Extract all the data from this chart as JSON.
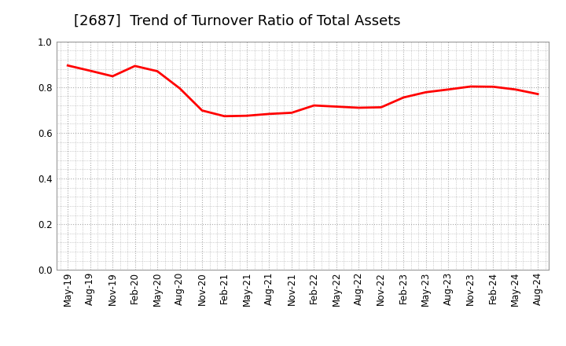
{
  "title": "[2687]  Trend of Turnover Ratio of Total Assets",
  "x_labels": [
    "May-19",
    "Aug-19",
    "Nov-19",
    "Feb-20",
    "May-20",
    "Aug-20",
    "Nov-20",
    "Feb-21",
    "May-21",
    "Aug-21",
    "Nov-21",
    "Feb-22",
    "May-22",
    "Aug-22",
    "Nov-22",
    "Feb-23",
    "May-23",
    "Aug-23",
    "Nov-23",
    "Feb-24",
    "May-24",
    "Aug-24"
  ],
  "values": [
    0.895,
    0.872,
    0.848,
    0.893,
    0.87,
    0.795,
    0.698,
    0.673,
    0.675,
    0.683,
    0.688,
    0.72,
    0.715,
    0.71,
    0.712,
    0.755,
    0.778,
    0.79,
    0.803,
    0.802,
    0.79,
    0.77
  ],
  "line_color": "#ff0000",
  "line_width": 2.0,
  "ylim": [
    0.0,
    1.0
  ],
  "yticks": [
    0.0,
    0.2,
    0.4,
    0.6,
    0.8,
    1.0
  ],
  "bg_color": "#ffffff",
  "plot_bg_color": "#ffffff",
  "grid_color": "#aaaaaa",
  "title_fontsize": 13,
  "tick_fontsize": 8.5,
  "title_color": "#000000"
}
